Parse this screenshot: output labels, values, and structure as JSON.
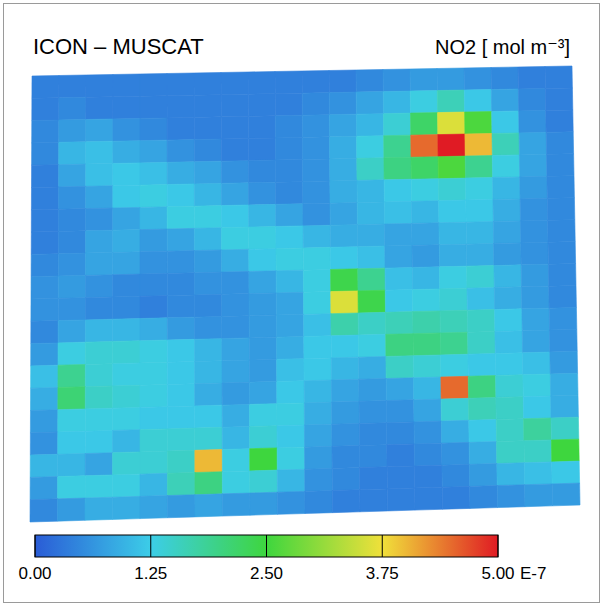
{
  "chart_data": {
    "type": "heatmap",
    "title": "ICON – MUSCAT",
    "variable_label": "NO2 [ mol m⁻³]",
    "scale_label": "E-7",
    "colorbar_range": [
      0,
      5
    ],
    "colorbar_ticks": [
      {
        "value": 0,
        "label": "0.00"
      },
      {
        "value": 1.25,
        "label": "1.25"
      },
      {
        "value": 2.5,
        "label": "2.50"
      },
      {
        "value": 3.75,
        "label": "3.75"
      },
      {
        "value": 5,
        "label": "5.00"
      }
    ],
    "cells": [
      [
        0.4,
        0.4,
        0.4,
        0.4,
        0.4,
        0.4,
        0.4,
        0.4,
        0.4,
        0.4,
        0.4,
        0.4,
        0.5,
        0.6,
        0.7,
        0.7,
        0.6,
        0.5,
        0.4,
        0.4
      ],
      [
        0.4,
        0.5,
        0.4,
        0.4,
        0.4,
        0.4,
        0.4,
        0.4,
        0.4,
        0.4,
        0.5,
        0.6,
        0.8,
        1.0,
        1.3,
        1.6,
        1.2,
        0.8,
        0.5,
        0.4
      ],
      [
        0.5,
        0.7,
        0.8,
        0.6,
        0.5,
        0.4,
        0.4,
        0.4,
        0.4,
        0.5,
        0.6,
        0.8,
        1.0,
        1.4,
        2.2,
        3.6,
        2.6,
        1.2,
        0.6,
        0.4
      ],
      [
        0.5,
        1.0,
        1.1,
        0.9,
        0.8,
        0.6,
        0.5,
        0.4,
        0.4,
        0.5,
        0.6,
        0.9,
        1.3,
        1.9,
        4.5,
        5.0,
        4.0,
        1.6,
        0.8,
        0.5
      ],
      [
        0.4,
        0.8,
        1.1,
        1.2,
        1.1,
        0.9,
        0.8,
        0.6,
        0.5,
        0.5,
        0.6,
        0.9,
        1.5,
        2.0,
        2.2,
        2.6,
        1.9,
        1.3,
        0.8,
        0.5
      ],
      [
        0.4,
        0.6,
        0.8,
        1.2,
        1.3,
        1.2,
        1.0,
        0.8,
        0.6,
        0.5,
        0.6,
        0.9,
        1.0,
        1.2,
        1.3,
        1.4,
        1.3,
        1.0,
        0.7,
        0.5
      ],
      [
        0.4,
        0.5,
        0.6,
        0.8,
        1.0,
        1.3,
        1.3,
        1.2,
        1.0,
        0.8,
        0.6,
        0.8,
        1.0,
        1.1,
        1.0,
        1.2,
        1.2,
        0.9,
        0.6,
        0.5
      ],
      [
        0.4,
        0.5,
        0.8,
        0.9,
        0.7,
        0.8,
        1.0,
        1.3,
        1.3,
        1.2,
        1.0,
        0.9,
        0.9,
        0.8,
        0.8,
        1.0,
        1.0,
        0.8,
        0.6,
        0.5
      ],
      [
        0.5,
        0.6,
        0.8,
        0.8,
        0.6,
        0.6,
        0.7,
        0.9,
        1.2,
        1.3,
        1.3,
        1.2,
        1.1,
        0.8,
        0.7,
        0.9,
        0.9,
        0.7,
        0.6,
        0.5
      ],
      [
        0.6,
        0.7,
        0.6,
        0.5,
        0.5,
        0.5,
        0.6,
        0.6,
        0.8,
        1.0,
        1.3,
        2.4,
        1.9,
        1.1,
        1.0,
        1.3,
        1.4,
        1.0,
        0.7,
        0.5
      ],
      [
        0.6,
        0.6,
        0.5,
        0.5,
        0.4,
        0.5,
        0.5,
        0.6,
        0.7,
        0.8,
        1.3,
        3.6,
        2.4,
        1.2,
        1.3,
        1.4,
        1.1,
        0.9,
        0.7,
        0.5
      ],
      [
        0.5,
        0.8,
        1.0,
        1.0,
        0.9,
        0.7,
        0.6,
        0.6,
        0.7,
        0.8,
        1.1,
        1.7,
        1.5,
        1.6,
        1.7,
        1.6,
        1.5,
        1.2,
        0.8,
        0.6
      ],
      [
        0.7,
        1.3,
        1.4,
        1.4,
        1.3,
        1.2,
        1.0,
        0.8,
        0.7,
        0.9,
        1.2,
        1.2,
        1.3,
        2.0,
        2.0,
        1.9,
        1.5,
        1.1,
        0.8,
        0.6
      ],
      [
        1.1,
        1.9,
        1.4,
        1.3,
        1.3,
        1.2,
        1.0,
        0.8,
        0.7,
        1.1,
        1.2,
        1.0,
        0.9,
        1.5,
        1.4,
        1.3,
        1.2,
        1.2,
        1.1,
        0.7
      ],
      [
        0.9,
        2.1,
        1.5,
        1.4,
        1.3,
        1.2,
        0.9,
        0.7,
        0.8,
        1.2,
        1.0,
        0.8,
        0.7,
        0.8,
        1.0,
        4.5,
        2.0,
        1.4,
        1.3,
        0.9
      ],
      [
        0.7,
        1.3,
        1.3,
        1.3,
        1.2,
        1.2,
        1.2,
        0.9,
        1.3,
        1.3,
        0.9,
        0.7,
        0.6,
        0.6,
        0.8,
        1.4,
        1.6,
        1.5,
        1.2,
        0.9
      ],
      [
        0.6,
        1.2,
        1.2,
        1.0,
        1.4,
        1.4,
        1.4,
        1.0,
        1.4,
        1.2,
        0.8,
        0.6,
        0.5,
        0.5,
        0.6,
        0.9,
        1.2,
        1.5,
        1.8,
        1.5
      ],
      [
        1.0,
        1.0,
        0.8,
        1.4,
        1.4,
        1.5,
        4.0,
        1.3,
        2.5,
        1.3,
        0.7,
        0.5,
        0.5,
        0.4,
        0.5,
        0.6,
        0.9,
        1.5,
        1.5,
        2.5
      ],
      [
        0.7,
        1.3,
        1.3,
        1.3,
        1.0,
        1.6,
        2.0,
        1.3,
        1.4,
        1.0,
        0.6,
        0.5,
        0.4,
        0.4,
        0.4,
        0.5,
        0.7,
        1.0,
        1.1,
        1.2
      ],
      [
        0.5,
        0.7,
        0.9,
        0.9,
        0.8,
        0.7,
        0.8,
        0.7,
        0.7,
        0.6,
        0.5,
        0.4,
        0.4,
        0.4,
        0.4,
        0.4,
        0.5,
        0.6,
        0.7,
        0.7
      ]
    ]
  }
}
